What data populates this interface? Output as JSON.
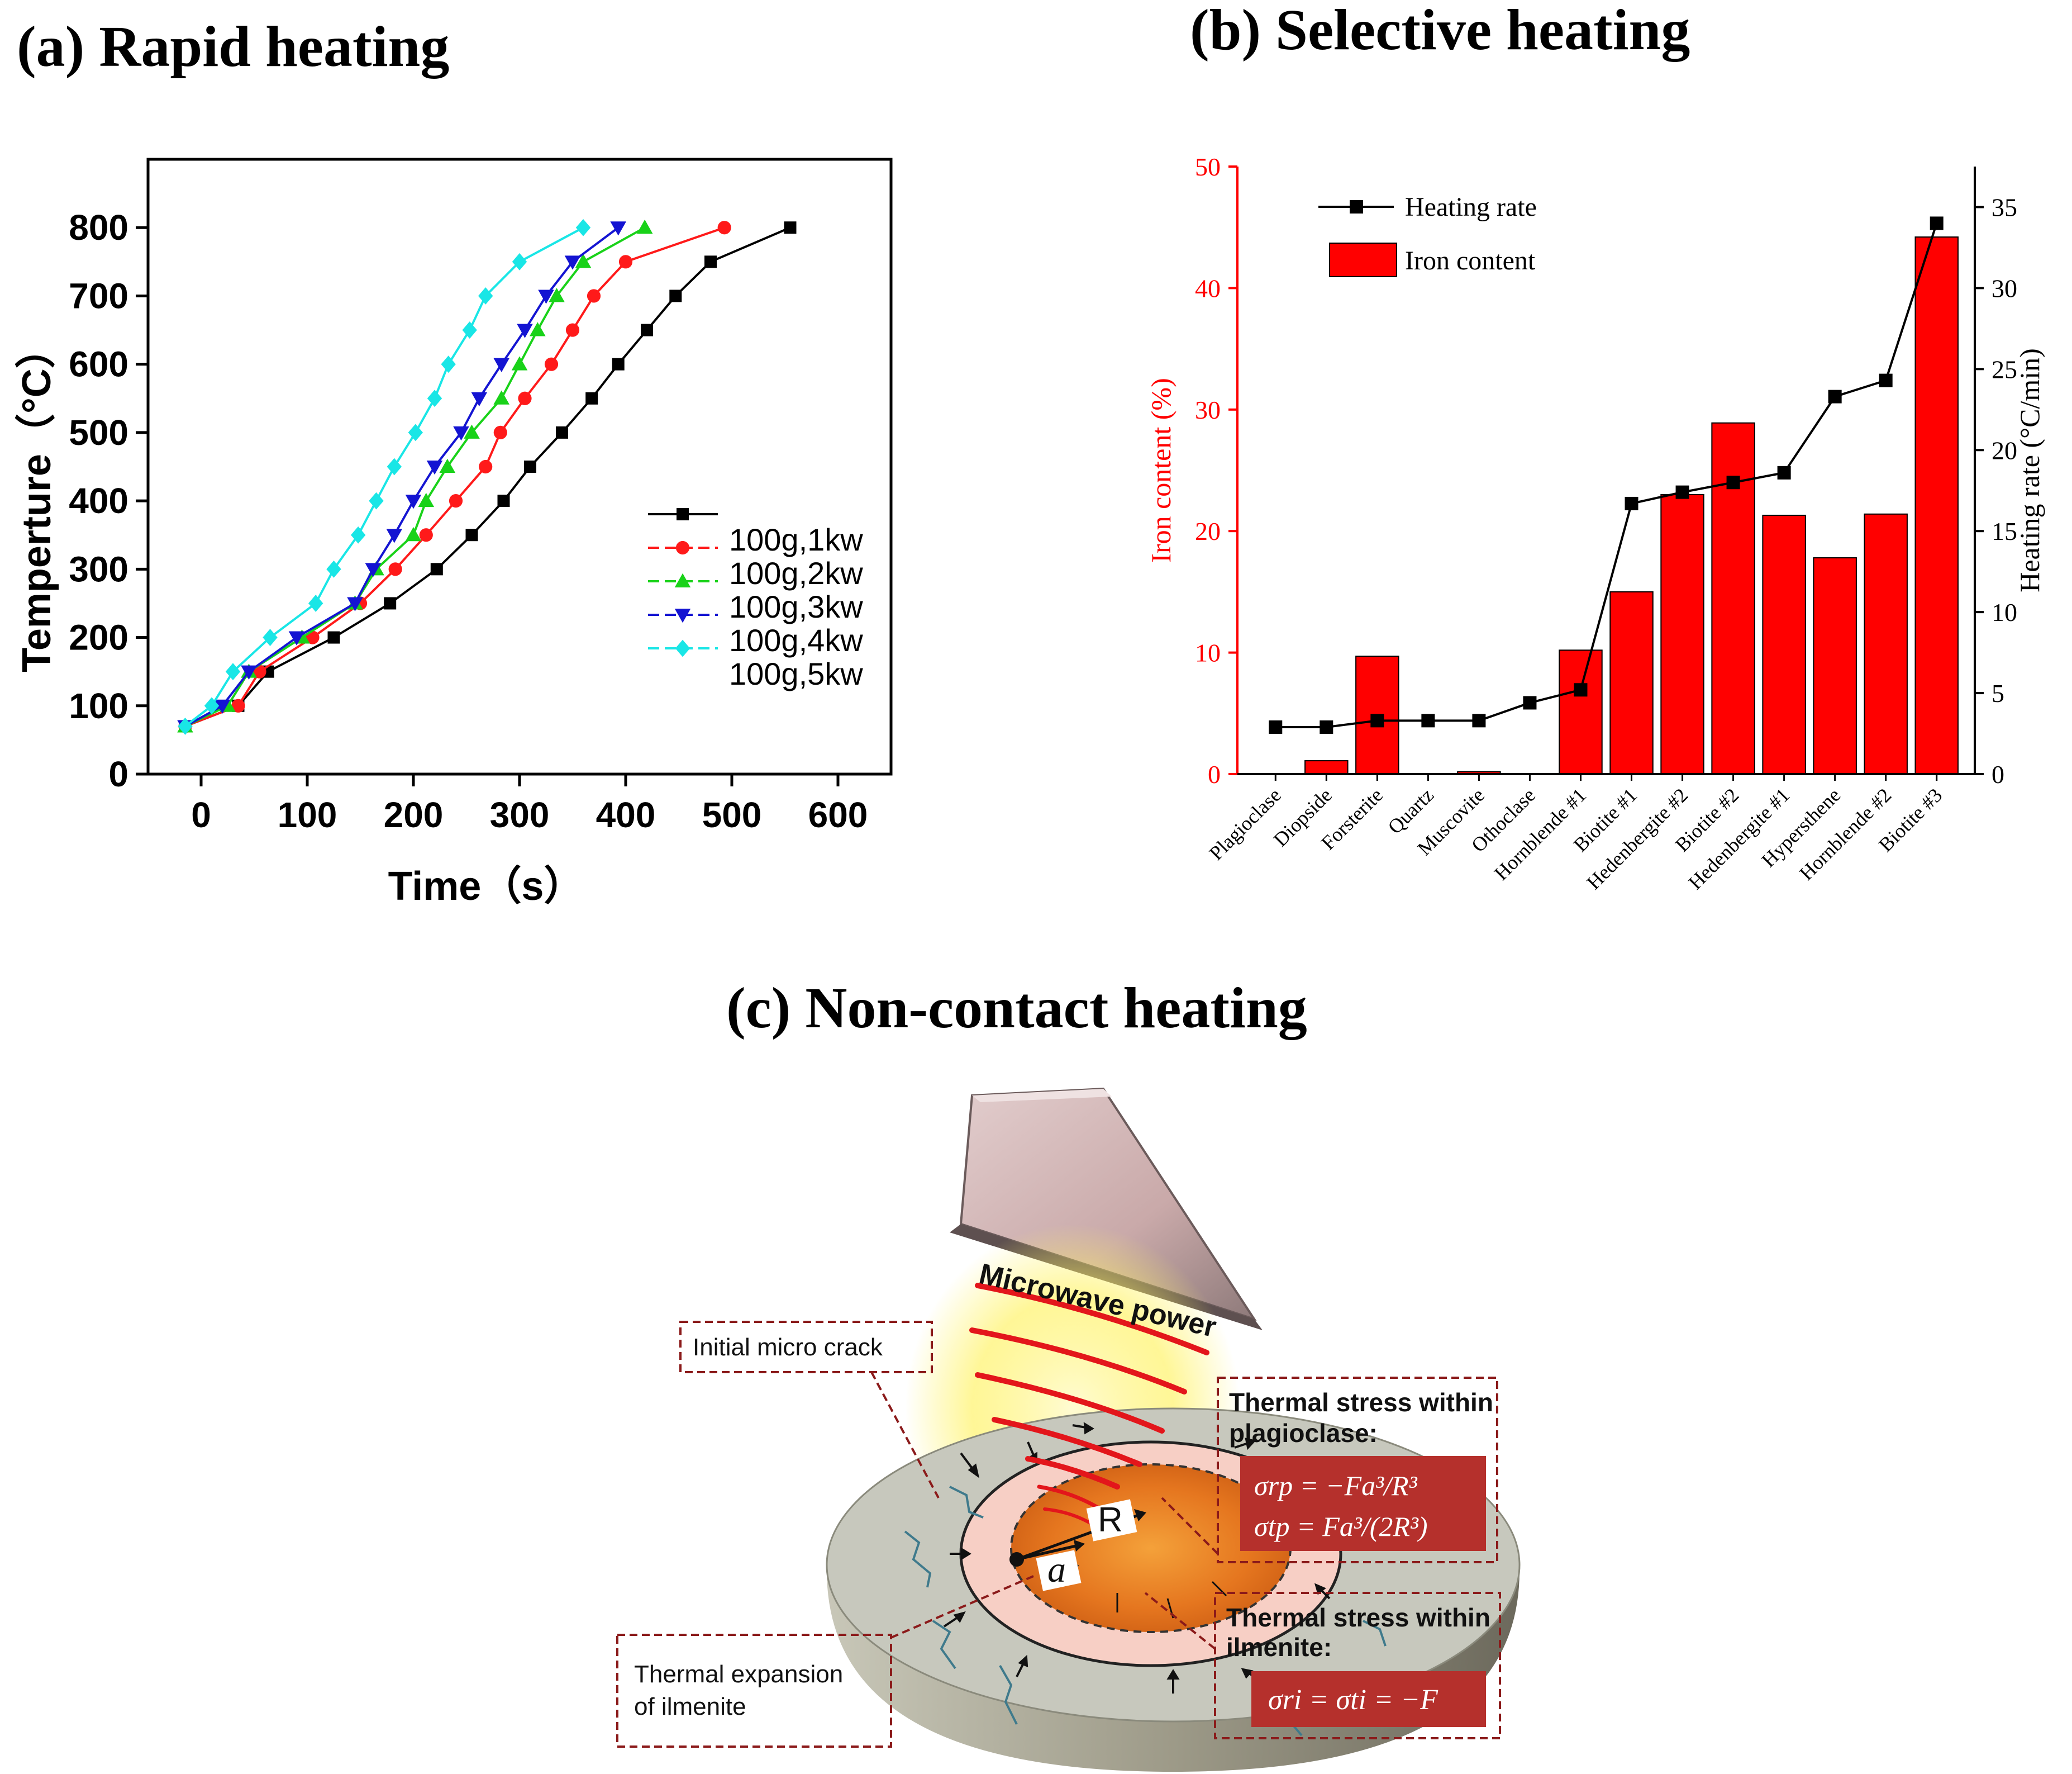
{
  "panel_a": {
    "title": "(a) Rapid heating"
  },
  "panel_b": {
    "title": "(b) Selective heating"
  },
  "panel_c": {
    "title": "(c) Non-contact heating",
    "labels": {
      "microwave": "Microwave power",
      "initial_crack": "Initial micro crack",
      "plag_title_1": "Thermal stress within",
      "plag_title_2": "plagioclase:",
      "plag_eq_1": "σrp = −Fa³/R³",
      "plag_eq_2": "σtp = Fa³/(2R³)",
      "ilm_title_1": "Thermal stress within",
      "ilm_title_2": "ilmenite:",
      "ilm_eq": "σri = σti = −F",
      "expansion_1": "Thermal expansion",
      "expansion_2": "of ilmenite",
      "R": "R",
      "a": "a"
    },
    "colors": {
      "box_border": "#8b1a1a",
      "eq_fill": "#b5302c",
      "wave": "#e3161b",
      "glow": "#fff36a"
    }
  },
  "chart_data": [
    {
      "type": "line",
      "xlabel": "Time（s）",
      "ylabel": "Temperture（°C）",
      "xlim": [
        -50,
        650
      ],
      "ylim": [
        0,
        900
      ],
      "xticks": [
        0,
        100,
        200,
        300,
        400,
        500,
        600
      ],
      "yticks": [
        0,
        100,
        200,
        300,
        400,
        500,
        600,
        700,
        800
      ],
      "legend_position": "lower-right",
      "series": [
        {
          "name": "100g,1kw",
          "color": "#000000",
          "marker": "square",
          "x": [
            -15,
            35,
            63,
            125,
            178,
            222,
            255,
            285,
            310,
            340,
            368,
            393,
            420,
            447,
            480,
            555
          ],
          "y": [
            70,
            100,
            150,
            200,
            250,
            300,
            350,
            400,
            450,
            500,
            550,
            600,
            650,
            700,
            750,
            800
          ]
        },
        {
          "name": "100g,2kw",
          "color": "#ff1a1a",
          "marker": "circle",
          "x": [
            -15,
            35,
            55,
            105,
            150,
            183,
            212,
            240,
            268,
            282,
            305,
            330,
            350,
            370,
            400,
            493
          ],
          "y": [
            70,
            100,
            150,
            200,
            250,
            300,
            350,
            400,
            450,
            500,
            550,
            600,
            650,
            700,
            750,
            800
          ]
        },
        {
          "name": "100g,3kw",
          "color": "#19d219",
          "marker": "triangle-up",
          "x": [
            -15,
            25,
            45,
            95,
            145,
            165,
            200,
            212,
            232,
            255,
            283,
            300,
            317,
            335,
            360,
            418
          ],
          "y": [
            70,
            100,
            150,
            200,
            250,
            300,
            350,
            400,
            450,
            500,
            550,
            600,
            650,
            700,
            750,
            800
          ]
        },
        {
          "name": "100g,4kw",
          "color": "#1414d2",
          "marker": "triangle-down",
          "x": [
            -15,
            20,
            45,
            90,
            145,
            162,
            182,
            200,
            220,
            245,
            262,
            283,
            305,
            325,
            350,
            393
          ],
          "y": [
            70,
            100,
            150,
            200,
            250,
            300,
            350,
            400,
            450,
            500,
            550,
            600,
            650,
            700,
            750,
            800
          ]
        },
        {
          "name": "100g,5kw",
          "color": "#19e6e6",
          "marker": "diamond",
          "x": [
            -15,
            10,
            30,
            65,
            108,
            125,
            148,
            165,
            182,
            202,
            220,
            233,
            253,
            268,
            300,
            360
          ],
          "y": [
            70,
            100,
            150,
            200,
            250,
            300,
            350,
            400,
            450,
            500,
            550,
            600,
            650,
            700,
            750,
            800
          ]
        }
      ]
    },
    {
      "type": "bar",
      "ylabel": "Iron content (%)",
      "y2label": "Heating rate (°C/min)",
      "ylim": [
        0,
        50
      ],
      "y2lim": [
        0,
        37.5
      ],
      "yticks": [
        0,
        10,
        20,
        30,
        40,
        50
      ],
      "y2ticks": [
        0,
        5,
        10,
        15,
        20,
        25,
        30,
        35
      ],
      "legend_position": "top-left",
      "categories": [
        "Plagioclase",
        "Diopside",
        "Forsterite",
        "Quartz",
        "Muscovite",
        "Othoclase",
        "Hornblende #1",
        "Biotite #1",
        "Hedenbergite #2",
        "Biotite #2",
        "Hedenbergite #1",
        "Hypersthene",
        "Hornblende #2",
        "Biotite #3"
      ],
      "series": [
        {
          "name": "Iron content",
          "axis": "left",
          "kind": "bar",
          "color": "#ff0000",
          "values": [
            0,
            1.1,
            9.7,
            0,
            0.2,
            0,
            10.2,
            15,
            23,
            28.9,
            21.3,
            17.8,
            21.4,
            44.2
          ]
        },
        {
          "name": "Heating rate",
          "axis": "right",
          "kind": "line",
          "color": "#000000",
          "marker": "square",
          "values": [
            2.9,
            2.9,
            3.3,
            3.3,
            3.3,
            4.4,
            5.2,
            16.7,
            17.4,
            18,
            18.6,
            23.3,
            24.3,
            34
          ]
        }
      ]
    }
  ]
}
